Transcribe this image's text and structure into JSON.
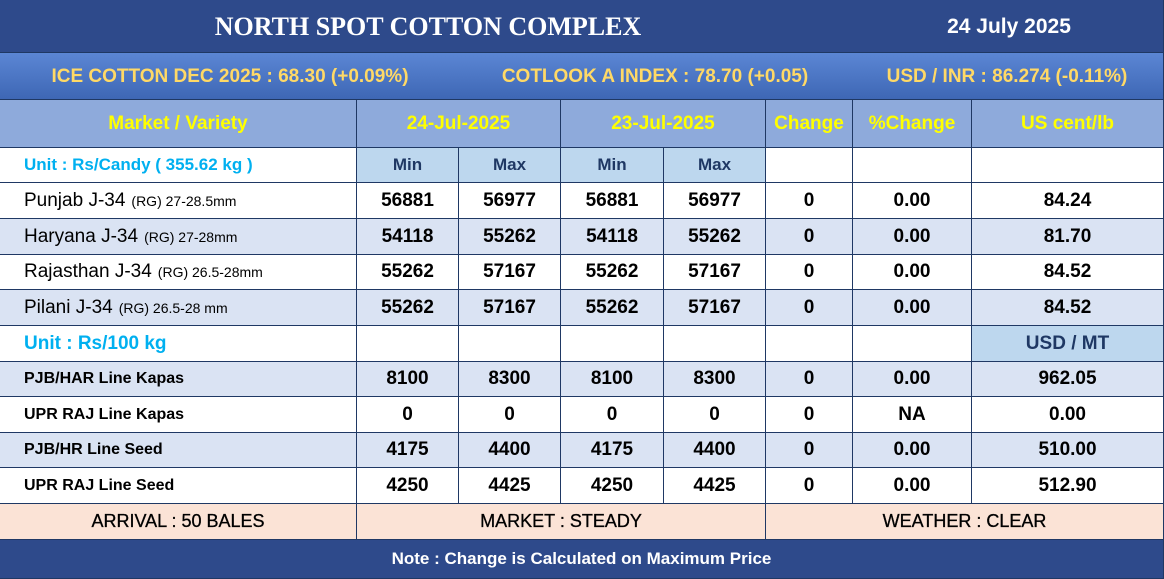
{
  "header": {
    "title": "NORTH SPOT COTTON COMPLEX",
    "date": "24 July 2025"
  },
  "indices": [
    "ICE COTTON DEC 2025 : 68.30 (+0.09%)",
    "COTLOOK A INDEX : 78.70 (+0.05)",
    "USD / INR : 86.274 (-0.11%)"
  ],
  "table": {
    "columns": [
      "Market / Variety",
      "24-Jul-2025",
      "23-Jul-2025",
      "Change",
      "%Change",
      "US cent/lb"
    ],
    "subheader": {
      "unit": "Unit : Rs/Candy ( 355.62 kg )",
      "cols": [
        "Min",
        "Max",
        "Min",
        "Max"
      ]
    },
    "rows": [
      {
        "name": "Punjab J-34",
        "spec": "(RG)  27-28.5mm",
        "values": [
          56881,
          56977,
          56881,
          56977,
          0,
          "0.00",
          "84.24"
        ]
      },
      {
        "name": "Haryana J-34",
        "spec": "(RG) 27-28mm",
        "values": [
          54118,
          55262,
          54118,
          55262,
          0,
          "0.00",
          "81.70"
        ]
      },
      {
        "name": "Rajasthan J-34",
        "spec": "(RG) 26.5-28mm",
        "values": [
          55262,
          57167,
          55262,
          57167,
          0,
          "0.00",
          "84.52"
        ]
      },
      {
        "name": "Pilani J-34",
        "spec": "(RG) 26.5-28 mm",
        "values": [
          55262,
          57167,
          55262,
          57167,
          0,
          "0.00",
          "84.52"
        ]
      }
    ],
    "subheader2": {
      "unit": "Unit : Rs/100 kg",
      "last": "USD / MT"
    },
    "rows2": [
      {
        "name": "PJB/HAR Line Kapas",
        "values": [
          8100,
          8300,
          8100,
          8300,
          0,
          "0.00",
          "962.05"
        ]
      },
      {
        "name": "UPR RAJ Line Kapas",
        "values": [
          0,
          0,
          0,
          0,
          0,
          "NA",
          "0.00"
        ]
      },
      {
        "name": "PJB/HR Line Seed",
        "values": [
          4175,
          4400,
          4175,
          4400,
          0,
          "0.00",
          "510.00"
        ]
      },
      {
        "name": "UPR RAJ Line Seed",
        "values": [
          4250,
          4425,
          4250,
          4425,
          0,
          "0.00",
          "512.90"
        ]
      }
    ]
  },
  "footer": [
    "ARRIVAL : 50 BALES",
    "MARKET : STEADY",
    "WEATHER : CLEAR"
  ],
  "note": "Note : Change is Calculated on Maximum Price"
}
